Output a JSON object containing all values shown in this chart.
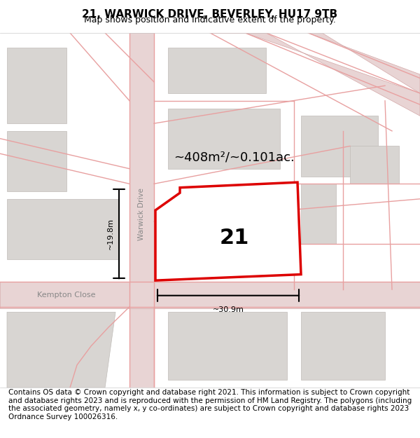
{
  "title": "21, WARWICK DRIVE, BEVERLEY, HU17 9TB",
  "subtitle": "Map shows position and indicative extent of the property.",
  "area_label": "~408m²/~0.101ac.",
  "house_number": "21",
  "width_label": "~30.9m",
  "height_label": "~19.8m",
  "street_label": "Warwick Drive",
  "street_label2": "Kempton Close",
  "footer": "Contains OS data © Crown copyright and database right 2021. This information is subject to Crown copyright and database rights 2023 and is reproduced with the permission of HM Land Registry. The polygons (including the associated geometry, namely x, y co-ordinates) are subject to Crown copyright and database rights 2023 Ordnance Survey 100026316.",
  "bg_color": "#f0eeec",
  "map_bg": "#f0eeec",
  "road_color": "#e8d0d0",
  "road_outline": "#d4a0a0",
  "plot_color": "#ffffff",
  "plot_border": "#dd0000",
  "block_color": "#d8d5d2",
  "title_fontsize": 11,
  "subtitle_fontsize": 9,
  "footer_fontsize": 7.5
}
